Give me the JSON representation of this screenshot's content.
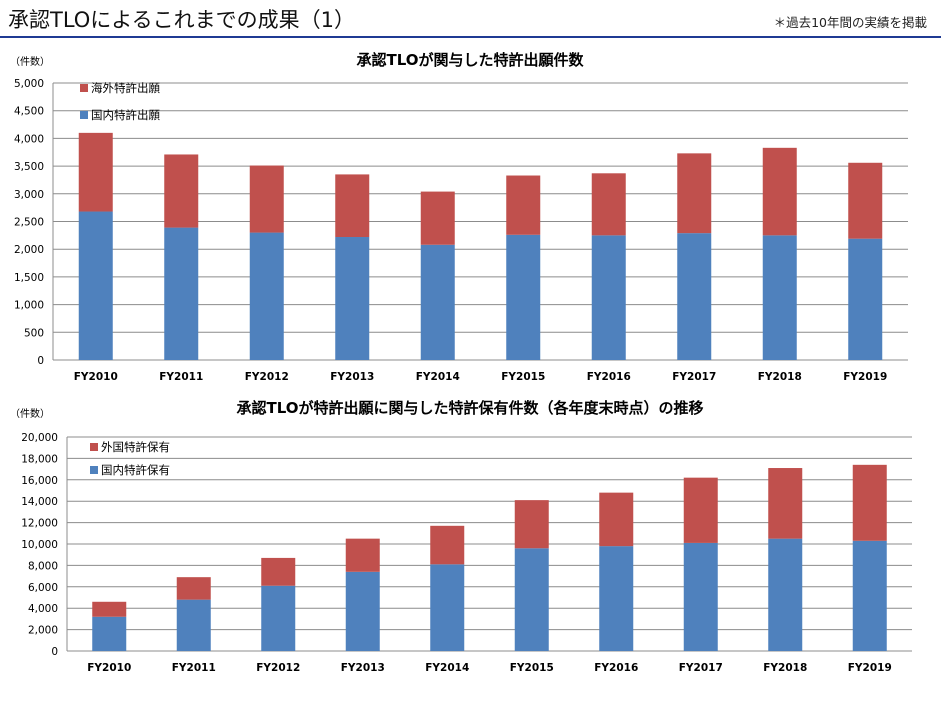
{
  "header": {
    "title": "承認TLOによるこれまでの成果（1）",
    "note": "＊過去10年間の実績を掲載"
  },
  "colors": {
    "domestic": "#4f81bd",
    "foreign": "#c0504d",
    "header_rule": "#1f3a93",
    "grid": "#8c8c8c"
  },
  "chart_data": [
    {
      "type": "bar",
      "stacked": true,
      "title": "承認TLOが関与した特許出願件数",
      "unit_label": "（件数）",
      "categories": [
        "FY2010",
        "FY2011",
        "FY2012",
        "FY2013",
        "FY2014",
        "FY2015",
        "FY2016",
        "FY2017",
        "FY2018",
        "FY2019"
      ],
      "series": [
        {
          "name": "国内特許出願",
          "color": "#4f81bd",
          "values": [
            2680,
            2390,
            2300,
            2220,
            2080,
            2260,
            2250,
            2290,
            2250,
            2190
          ]
        },
        {
          "name": "海外特許出願",
          "color": "#c0504d",
          "values": [
            1420,
            1320,
            1210,
            1130,
            960,
            1070,
            1120,
            1440,
            1580,
            1370
          ]
        }
      ],
      "legend_order": [
        "海外特許出願",
        "国内特許出願"
      ],
      "legend_position": "top-left",
      "ylim": [
        0,
        5000
      ],
      "yticks": [
        0,
        500,
        1000,
        1500,
        2000,
        2500,
        3000,
        3500,
        4000,
        4500,
        5000
      ],
      "ytick_labels": [
        "0",
        "500",
        "1,000",
        "1,500",
        "2,000",
        "2,500",
        "3,000",
        "3,500",
        "4,000",
        "4,500",
        "5,000"
      ],
      "grid": true
    },
    {
      "type": "bar",
      "stacked": true,
      "title": "承認TLOが特許出願に関与した特許保有件数（各年度末時点）の推移",
      "unit_label": "（件数）",
      "categories": [
        "FY2010",
        "FY2011",
        "FY2012",
        "FY2013",
        "FY2014",
        "FY2015",
        "FY2016",
        "FY2017",
        "FY2018",
        "FY2019"
      ],
      "series": [
        {
          "name": "国内特許保有",
          "color": "#4f81bd",
          "values": [
            3200,
            4800,
            6100,
            7400,
            8100,
            9600,
            9800,
            10100,
            10500,
            10300
          ]
        },
        {
          "name": "外国特許保有",
          "color": "#c0504d",
          "values": [
            1400,
            2100,
            2600,
            3100,
            3600,
            4500,
            5000,
            6100,
            6600,
            7100
          ]
        }
      ],
      "legend_order": [
        "外国特許保有",
        "国内特許保有"
      ],
      "legend_position": "top-left",
      "ylim": [
        0,
        20000
      ],
      "yticks": [
        0,
        2000,
        4000,
        6000,
        8000,
        10000,
        12000,
        14000,
        16000,
        18000,
        20000
      ],
      "ytick_labels": [
        "0",
        "2,000",
        "4,000",
        "6,000",
        "8,000",
        "10,000",
        "12,000",
        "14,000",
        "16,000",
        "18,000",
        "20,000"
      ],
      "grid": true
    }
  ]
}
